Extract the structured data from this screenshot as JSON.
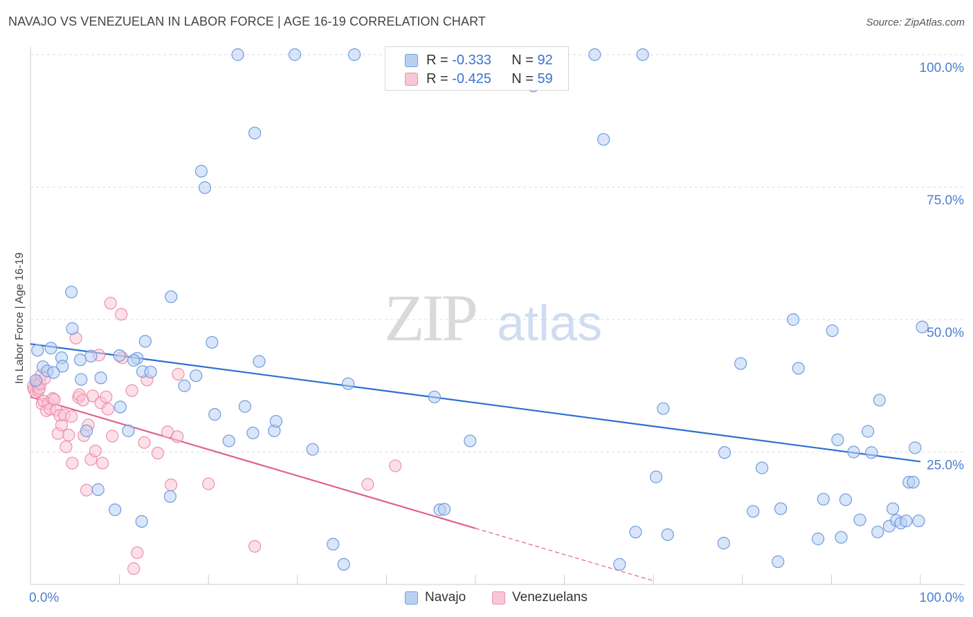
{
  "title": "NAVAJO VS VENEZUELAN IN LABOR FORCE | AGE 16-19 CORRELATION CHART",
  "source": "Source: ZipAtlas.com",
  "watermark": {
    "zip": "ZIP",
    "atlas": "atlas"
  },
  "legend": {
    "r_label": "R =",
    "n_label": "N =",
    "navajo": {
      "r": "-0.333",
      "n": "92"
    },
    "venezuelans": {
      "r": "-0.425",
      "n": "59"
    }
  },
  "bottom_legend": {
    "navajo": "Navajo",
    "venezuelans": "Venezuelans"
  },
  "colors": {
    "navajo_fill": "#b9d0f3",
    "navajo_stroke": "#6f9be0",
    "navajo_line": "#2b6fd1",
    "venezuelans_fill": "#f9c6d6",
    "venezuelans_stroke": "#ec8fae",
    "venezuelans_line": "#e0608c",
    "tick": "#4a7fd1",
    "grid": "#dddddd"
  },
  "chart_data": {
    "type": "scatter",
    "title": "NAVAJO VS VENEZUELAN IN LABOR FORCE | AGE 16-19 CORRELATION CHART",
    "xlabel": "",
    "ylabel": "In Labor Force | Age 16-19",
    "xlim": [
      0,
      100
    ],
    "ylim": [
      0,
      100
    ],
    "x_tick_labels": [
      "0.0%",
      "100.0%"
    ],
    "y_ticks": [
      {
        "value": 100,
        "label": "100.0%"
      },
      {
        "value": 75,
        "label": "75.0%"
      },
      {
        "value": 50,
        "label": "50.0%"
      },
      {
        "value": 25,
        "label": "25.0%"
      }
    ],
    "series": [
      {
        "name": "Navajo",
        "r": -0.333,
        "n": 92,
        "trend": {
          "x0": 0,
          "y0": 45.4,
          "x1": 100,
          "y1": 23.2,
          "dashed_from": null
        },
        "points": [
          [
            0.8,
            44.2
          ],
          [
            1.4,
            41.1
          ],
          [
            2.3,
            44.6
          ],
          [
            3.5,
            42.8
          ],
          [
            1.9,
            40.3
          ],
          [
            3.6,
            41.2
          ],
          [
            4.7,
            48.3
          ],
          [
            4.6,
            55.2
          ],
          [
            5.6,
            42.4
          ],
          [
            5.7,
            38.7
          ],
          [
            6.3,
            29.0
          ],
          [
            6.8,
            43.1
          ],
          [
            7.6,
            17.9
          ],
          [
            7.9,
            39.0
          ],
          [
            10.0,
            43.2
          ],
          [
            9.5,
            14.1
          ],
          [
            10.1,
            33.5
          ],
          [
            11.0,
            29.0
          ],
          [
            12.0,
            42.7
          ],
          [
            11.6,
            42.3
          ],
          [
            12.5,
            11.9
          ],
          [
            12.6,
            40.2
          ],
          [
            12.9,
            45.9
          ],
          [
            13.5,
            40.1
          ],
          [
            15.8,
            54.3
          ],
          [
            15.7,
            16.6
          ],
          [
            17.3,
            37.5
          ],
          [
            18.6,
            39.4
          ],
          [
            19.2,
            78.0
          ],
          [
            19.6,
            74.9
          ],
          [
            20.4,
            45.7
          ],
          [
            20.7,
            32.1
          ],
          [
            22.3,
            27.1
          ],
          [
            23.3,
            100.0
          ],
          [
            24.1,
            33.6
          ],
          [
            25.0,
            28.6
          ],
          [
            25.2,
            85.2
          ],
          [
            25.7,
            42.1
          ],
          [
            27.4,
            29.0
          ],
          [
            27.6,
            30.8
          ],
          [
            29.7,
            100.0
          ],
          [
            31.7,
            25.5
          ],
          [
            34.0,
            7.6
          ],
          [
            35.2,
            3.8
          ],
          [
            35.7,
            37.9
          ],
          [
            36.4,
            100.0
          ],
          [
            45.4,
            35.4
          ],
          [
            46.0,
            14.1
          ],
          [
            46.5,
            14.2
          ],
          [
            49.4,
            27.1
          ],
          [
            56.5,
            94.1
          ],
          [
            63.4,
            100.0
          ],
          [
            64.4,
            84.0
          ],
          [
            66.2,
            3.8
          ],
          [
            68.0,
            9.9
          ],
          [
            68.8,
            100.0
          ],
          [
            70.3,
            20.3
          ],
          [
            71.1,
            33.2
          ],
          [
            71.6,
            9.4
          ],
          [
            77.9,
            7.8
          ],
          [
            78.0,
            24.9
          ],
          [
            79.8,
            41.7
          ],
          [
            81.2,
            13.8
          ],
          [
            82.2,
            22.0
          ],
          [
            84.0,
            4.3
          ],
          [
            84.3,
            14.3
          ],
          [
            85.7,
            50.0
          ],
          [
            86.3,
            40.8
          ],
          [
            88.5,
            8.6
          ],
          [
            89.1,
            16.1
          ],
          [
            90.1,
            47.9
          ],
          [
            90.7,
            27.3
          ],
          [
            91.1,
            8.9
          ],
          [
            91.6,
            16.0
          ],
          [
            92.5,
            25.0
          ],
          [
            93.2,
            12.2
          ],
          [
            94.1,
            28.9
          ],
          [
            94.5,
            24.9
          ],
          [
            95.2,
            9.9
          ],
          [
            95.4,
            34.8
          ],
          [
            96.5,
            11.0
          ],
          [
            96.9,
            14.3
          ],
          [
            97.3,
            12.1
          ],
          [
            97.8,
            11.6
          ],
          [
            98.4,
            12.0
          ],
          [
            98.7,
            19.3
          ],
          [
            99.2,
            19.3
          ],
          [
            99.4,
            25.8
          ],
          [
            99.8,
            12.0
          ],
          [
            100.2,
            48.6
          ],
          [
            0.6,
            38.5
          ],
          [
            2.6,
            40.0
          ]
        ]
      },
      {
        "name": "Venezuelans",
        "r": -0.425,
        "n": 59,
        "trend": {
          "x0": 0,
          "y0": 35.4,
          "x1": 50,
          "y1": 10.6,
          "dashed_to_x": 70,
          "dashed_to_y": 0.7
        },
        "points": [
          [
            0.3,
            37.4
          ],
          [
            0.4,
            36.8
          ],
          [
            0.6,
            36.3
          ],
          [
            0.7,
            38.2
          ],
          [
            0.8,
            37.8
          ],
          [
            0.9,
            36.6
          ],
          [
            1.0,
            37.0
          ],
          [
            1.1,
            37.9
          ],
          [
            1.2,
            39.5
          ],
          [
            1.3,
            34.1
          ],
          [
            1.5,
            34.6
          ],
          [
            1.8,
            32.8
          ],
          [
            2.0,
            34.2
          ],
          [
            2.2,
            33.1
          ],
          [
            2.5,
            35.1
          ],
          [
            2.7,
            34.9
          ],
          [
            2.9,
            32.9
          ],
          [
            3.1,
            28.5
          ],
          [
            3.3,
            31.9
          ],
          [
            3.5,
            30.1
          ],
          [
            3.8,
            32.0
          ],
          [
            4.0,
            26.0
          ],
          [
            4.3,
            28.2
          ],
          [
            4.6,
            31.7
          ],
          [
            4.7,
            22.9
          ],
          [
            5.1,
            46.5
          ],
          [
            5.4,
            35.3
          ],
          [
            5.5,
            35.8
          ],
          [
            5.9,
            34.8
          ],
          [
            6.0,
            28.1
          ],
          [
            6.3,
            17.8
          ],
          [
            6.5,
            30.1
          ],
          [
            6.8,
            23.6
          ],
          [
            7.0,
            35.6
          ],
          [
            7.3,
            25.2
          ],
          [
            7.7,
            43.3
          ],
          [
            7.9,
            34.3
          ],
          [
            8.1,
            22.9
          ],
          [
            8.5,
            35.4
          ],
          [
            8.7,
            33.1
          ],
          [
            9.0,
            53.1
          ],
          [
            9.2,
            28.0
          ],
          [
            10.2,
            51.0
          ],
          [
            10.3,
            42.8
          ],
          [
            11.4,
            36.6
          ],
          [
            12.0,
            6.0
          ],
          [
            11.6,
            3.0
          ],
          [
            12.8,
            26.8
          ],
          [
            13.1,
            38.6
          ],
          [
            14.3,
            24.8
          ],
          [
            15.4,
            28.8
          ],
          [
            15.8,
            18.8
          ],
          [
            16.5,
            27.9
          ],
          [
            16.6,
            39.7
          ],
          [
            20.0,
            19.0
          ],
          [
            25.2,
            7.2
          ],
          [
            37.9,
            18.9
          ],
          [
            41.0,
            22.4
          ],
          [
            1.6,
            38.9
          ]
        ]
      }
    ]
  }
}
